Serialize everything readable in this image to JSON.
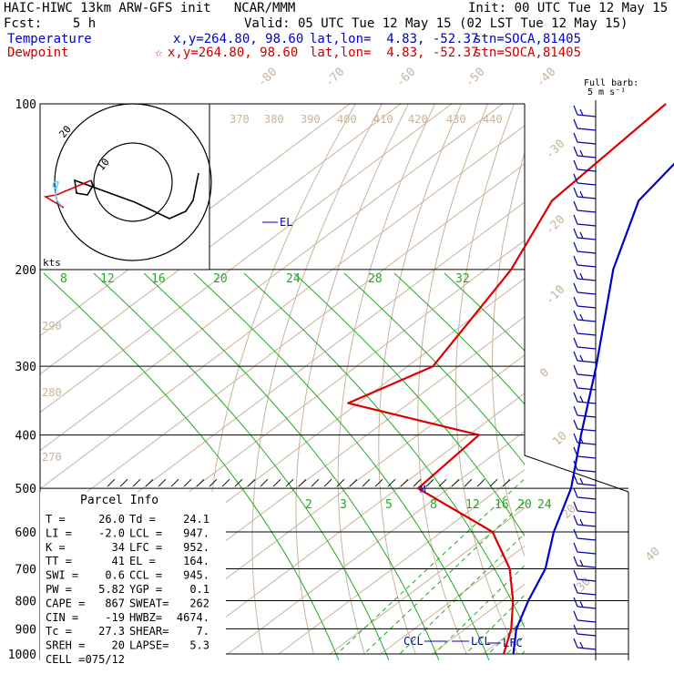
{
  "header": {
    "title": "HAIC-HIWC 13km ARW-GFS init   NCAR/MMM",
    "init": "Init: 00 UTC Tue 12 May 15",
    "fcst": "Fcst:    5 h",
    "valid": "Valid: 05 UTC Tue 12 May 15 (02 LST Tue 12 May 15)",
    "temp_label": "Temperature",
    "temp_xy": "x,y=264.80, 98.60",
    "temp_latlon": "lat,lon=  4.83, -52.37",
    "temp_stn": "stn=SOCA,81405",
    "dew_label": "Dewpoint",
    "dew_xy": "x,y=264.80, 98.60",
    "dew_latlon": "lat,lon=  4.83, -52.37",
    "dew_stn": "stn=SOCA,81405",
    "star_glyph": "☆",
    "barb_legend_1": "Full barb:",
    "barb_legend_2": "5 m s⁻¹"
  },
  "colors": {
    "temperature": "#0000cc",
    "dewpoint": "#dd0000",
    "isotherm": "#c8b49a",
    "mixing_ratio": "#22aa22",
    "barb": "#0000aa",
    "grid": "#000000"
  },
  "chart_data": {
    "type": "line",
    "pressure_levels": [
      100,
      200,
      300,
      400,
      500,
      600,
      700,
      800,
      900,
      1000
    ],
    "isotherm_labels": [
      "-80",
      "-70",
      "-60",
      "-50",
      "-40",
      "-30",
      "-20",
      "-10",
      "0",
      "10",
      "20",
      "30",
      "40"
    ],
    "theta_labels": [
      "370",
      "380",
      "390",
      "400",
      "410",
      "420",
      "430",
      "440",
      "290",
      "280",
      "270"
    ],
    "mixing_ratio_upper_labels": [
      "8",
      "12",
      "16",
      "20",
      "24",
      "28",
      "32"
    ],
    "mixing_ratio_lower_labels": [
      "2",
      "3",
      "5",
      "8",
      "12",
      "16",
      "20",
      "24"
    ],
    "series": [
      {
        "name": "Temperature",
        "profile": [
          [
            100,
            -75
          ],
          [
            150,
            -68
          ],
          [
            200,
            -55
          ],
          [
            300,
            -33
          ],
          [
            400,
            -18
          ],
          [
            500,
            -6
          ],
          [
            600,
            2
          ],
          [
            700,
            10
          ],
          [
            800,
            15
          ],
          [
            900,
            20
          ],
          [
            1000,
            26
          ]
        ]
      },
      {
        "name": "Dewpoint",
        "profile": [
          [
            100,
            -88
          ],
          [
            150,
            -85
          ],
          [
            200,
            -75
          ],
          [
            300,
            -65
          ],
          [
            350,
            -72
          ],
          [
            400,
            -38
          ],
          [
            500,
            -36
          ],
          [
            600,
            -10
          ],
          [
            700,
            3
          ],
          [
            800,
            12
          ],
          [
            900,
            19
          ],
          [
            1000,
            24.1
          ]
        ]
      }
    ],
    "levels_marked": {
      "el": "EL",
      "m": "M",
      "ccl": "CCL",
      "lcl": "LCL",
      "lfc": "LFC"
    },
    "hodograph": {
      "label_20": "20",
      "label_10": "10",
      "units": "kts"
    },
    "parcel_info": {
      "heading": "Parcel Info",
      "rows": [
        [
          "T  =",
          "26.0",
          "Td =",
          "24.1"
        ],
        [
          "LI =",
          "-2.0",
          "LCL =",
          "947."
        ],
        [
          "K  =",
          "34",
          "LFC =",
          "952."
        ],
        [
          "TT =",
          "41",
          "EL  =",
          "164."
        ],
        [
          "SWI =",
          "0.6",
          "CCL =",
          "945."
        ],
        [
          "PW =",
          "5.82",
          "YGP =",
          "0.1"
        ],
        [
          "CAPE =",
          "867",
          "SWEAT=",
          "262"
        ],
        [
          "CIN =",
          "-19",
          "HWBZ=",
          "4674."
        ],
        [
          "Tc =",
          "27.3",
          "SHEAR=",
          "7."
        ],
        [
          "SREH =",
          "20",
          "LAPSE=",
          "5.3"
        ],
        [
          "CELL =",
          "075/12",
          "",
          ""
        ]
      ]
    }
  }
}
